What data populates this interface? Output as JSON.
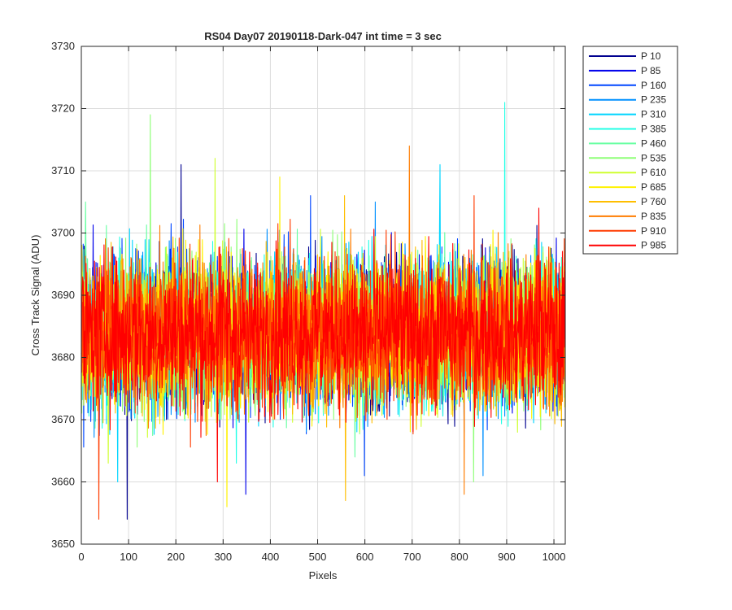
{
  "chart_data": {
    "type": "line",
    "title": "RS04 Day07 20190118-Dark-047 int time = 3 sec",
    "xlabel": "Pixels",
    "ylabel": "Cross Track Signal (ADU)",
    "xlim": [
      0,
      1024
    ],
    "ylim": [
      3650,
      3730
    ],
    "xticks": [
      0,
      100,
      200,
      300,
      400,
      500,
      600,
      700,
      800,
      900,
      1000
    ],
    "yticks": [
      3650,
      3660,
      3670,
      3680,
      3690,
      3700,
      3710,
      3720,
      3730
    ],
    "grid": true,
    "legend_position": "outside-top-right",
    "x_points": 1024,
    "series": [
      {
        "name": "P 10",
        "color": "#00008F",
        "mean": 3684,
        "min": 3654,
        "max": 3711
      },
      {
        "name": "P 85",
        "color": "#0000EB",
        "mean": 3684,
        "min": 3658,
        "max": 3708
      },
      {
        "name": "P 160",
        "color": "#0046FF",
        "mean": 3684,
        "min": 3661,
        "max": 3706
      },
      {
        "name": "P 235",
        "color": "#0090FF",
        "mean": 3684,
        "min": 3661,
        "max": 3705
      },
      {
        "name": "P 310",
        "color": "#00D5FF",
        "mean": 3684,
        "min": 3660,
        "max": 3711
      },
      {
        "name": "P 385",
        "color": "#22FFE6",
        "mean": 3684,
        "min": 3663,
        "max": 3721
      },
      {
        "name": "P 460",
        "color": "#66FFA1",
        "mean": 3684,
        "min": 3664,
        "max": 3705
      },
      {
        "name": "P 535",
        "color": "#8FFF78",
        "mean": 3684,
        "min": 3660,
        "max": 3719
      },
      {
        "name": "P 610",
        "color": "#CFFF30",
        "mean": 3684,
        "min": 3663,
        "max": 3712
      },
      {
        "name": "P 685",
        "color": "#FFF200",
        "mean": 3684,
        "min": 3656,
        "max": 3709
      },
      {
        "name": "P 760",
        "color": "#FFBE00",
        "mean": 3684,
        "min": 3657,
        "max": 3706
      },
      {
        "name": "P 835",
        "color": "#FF7D00",
        "mean": 3684,
        "min": 3658,
        "max": 3714
      },
      {
        "name": "P 910",
        "color": "#FF3C00",
        "mean": 3684,
        "min": 3654,
        "max": 3706
      },
      {
        "name": "P 985",
        "color": "#FF0000",
        "mean": 3684,
        "min": 3660,
        "max": 3704
      }
    ]
  }
}
